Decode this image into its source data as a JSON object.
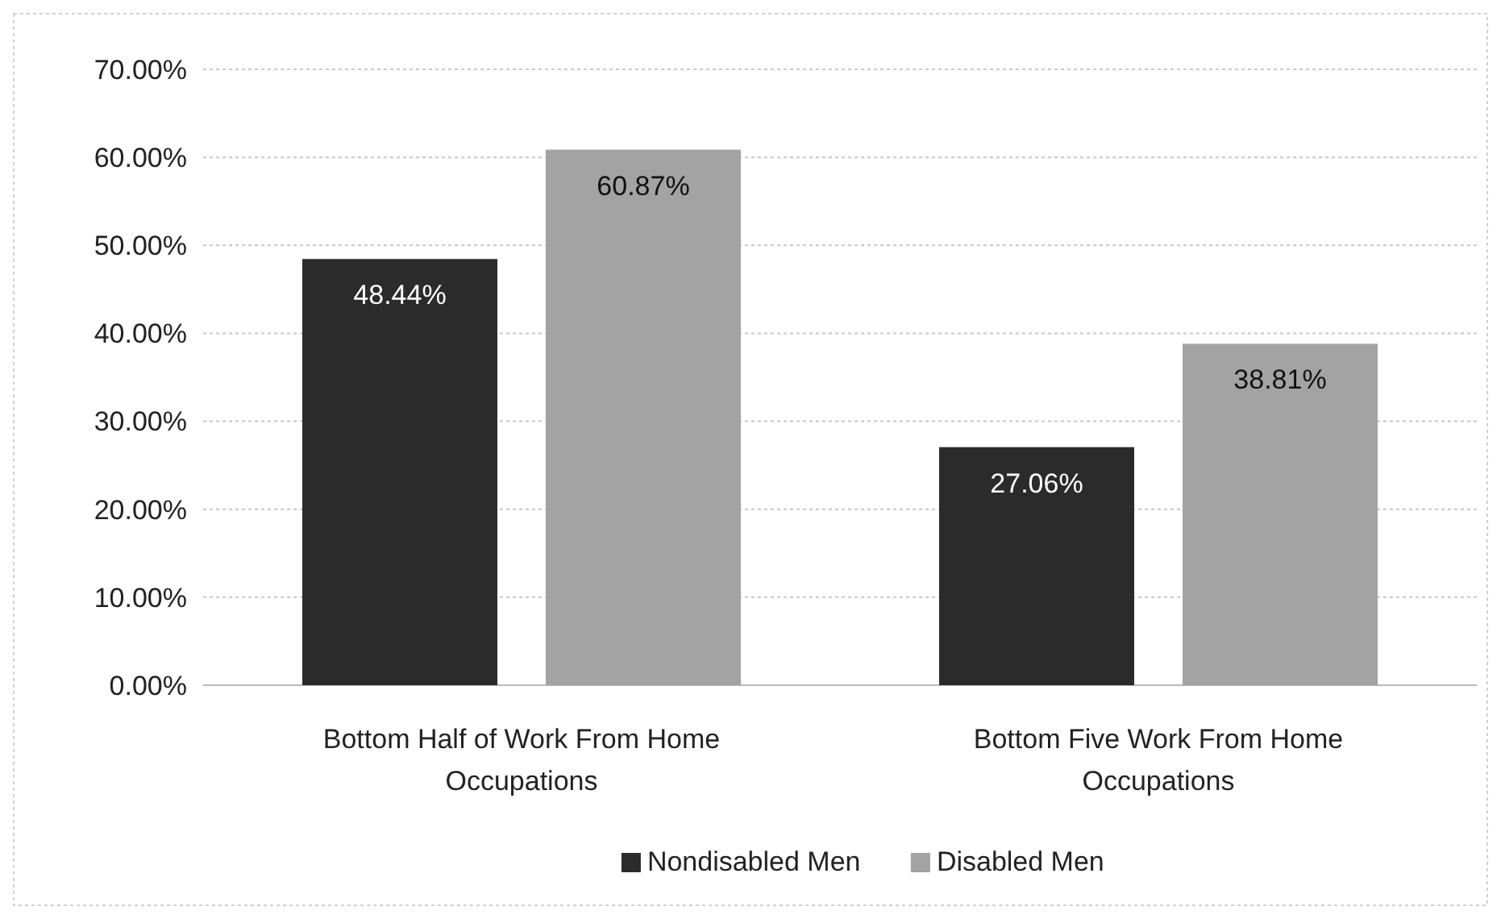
{
  "chart_data": {
    "type": "bar",
    "categories": [
      "Bottom Half of Work From Home Occupations",
      "Bottom Five Work From Home Occupations"
    ],
    "series": [
      {
        "name": "Nondisabled Men",
        "color": "#2b2b2b",
        "values": [
          48.44,
          27.06
        ],
        "value_labels": [
          "48.44%",
          "27.06%"
        ]
      },
      {
        "name": "Disabled Men",
        "color": "#a3a3a3",
        "values": [
          60.87,
          38.81
        ],
        "value_labels": [
          "60.87%",
          "38.81%"
        ]
      }
    ],
    "ylim": [
      0,
      70
    ],
    "yticks": [
      {
        "value": 0,
        "label": "0.00%"
      },
      {
        "value": 10,
        "label": "10.00%"
      },
      {
        "value": 20,
        "label": "20.00%"
      },
      {
        "value": 30,
        "label": "30.00%"
      },
      {
        "value": 40,
        "label": "40.00%"
      },
      {
        "value": 50,
        "label": "50.00%"
      },
      {
        "value": 60,
        "label": "60.00%"
      },
      {
        "value": 70,
        "label": "70.00%"
      }
    ],
    "grid": "y",
    "legend": "bottom"
  }
}
